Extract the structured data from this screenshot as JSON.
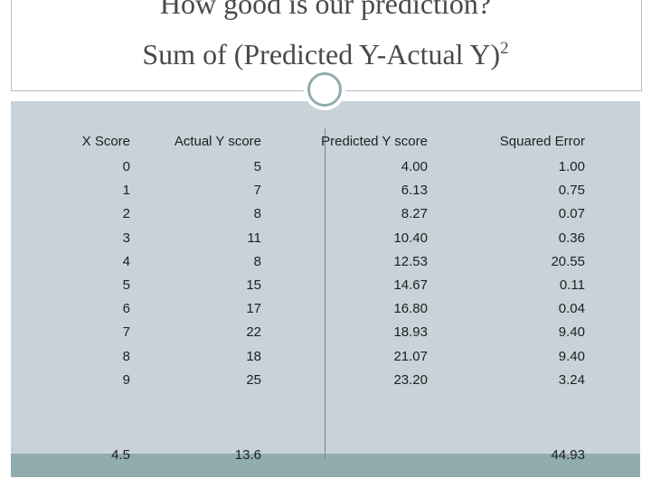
{
  "title": {
    "line1": "How good is our prediction?",
    "line2": "Sum of (Predicted Y-Actual Y)",
    "superscript": "2"
  },
  "table": {
    "headers": [
      "X Score",
      "Actual Y score",
      "Predicted Y score",
      "Squared Error"
    ],
    "rows": [
      [
        "0",
        "5",
        "4.00",
        "1.00"
      ],
      [
        "1",
        "7",
        "6.13",
        "0.75"
      ],
      [
        "2",
        "8",
        "8.27",
        "0.07"
      ],
      [
        "3",
        "11",
        "10.40",
        "0.36"
      ],
      [
        "4",
        "8",
        "12.53",
        "20.55"
      ],
      [
        "5",
        "15",
        "14.67",
        "0.11"
      ],
      [
        "6",
        "17",
        "16.80",
        "0.04"
      ],
      [
        "7",
        "22",
        "18.93",
        "9.40"
      ],
      [
        "8",
        "18",
        "21.07",
        "9.40"
      ],
      [
        "9",
        "25",
        "23.20",
        "3.24"
      ]
    ],
    "summary": [
      "4.5",
      "13.6",
      "",
      "44.93"
    ]
  },
  "colors": {
    "content_background": "#c8d2d9",
    "footer_bar": "#91acae",
    "divider": "#6f85a3",
    "title_text": "#4a4a4a"
  }
}
